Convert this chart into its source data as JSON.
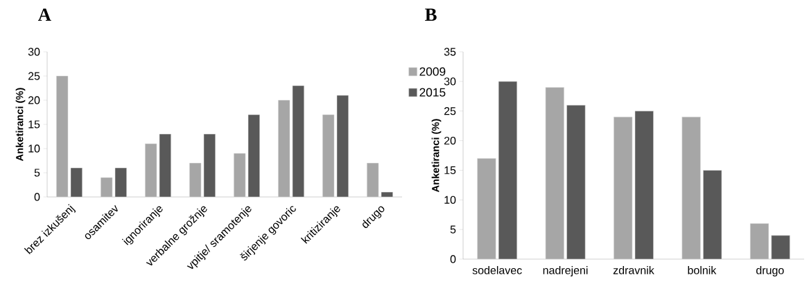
{
  "chart_data": [
    {
      "type": "bar",
      "title": "A",
      "ylabel": "Anketiranci (%)",
      "categories": [
        "brez izkušenj",
        "osamitev",
        "ignoriranje",
        "verbalne grožnje",
        "vpitje/ sramotenje",
        "širjenje govoric",
        "kritiziranje",
        "drugo"
      ],
      "series": [
        {
          "name": "2009",
          "color": "#a6a6a6",
          "values": [
            25,
            4,
            11,
            7,
            9,
            20,
            17,
            7
          ]
        },
        {
          "name": "2015",
          "color": "#595959",
          "values": [
            6,
            6,
            13,
            13,
            17,
            23,
            21,
            1
          ]
        }
      ],
      "ylim": [
        0,
        30
      ],
      "yticks": [
        0,
        5,
        10,
        15,
        20,
        25,
        30
      ],
      "legend": "right"
    },
    {
      "type": "bar",
      "title": "B",
      "ylabel": "Anketiranci (%)",
      "categories": [
        "sodelavec",
        "nadrejeni",
        "zdravnik",
        "bolnik",
        "drugo"
      ],
      "series": [
        {
          "color": "#a6a6a6",
          "values": [
            17,
            29,
            24,
            24,
            6
          ]
        },
        {
          "color": "#595959",
          "values": [
            30,
            26,
            25,
            15,
            4
          ]
        }
      ],
      "ylim": [
        0,
        35
      ],
      "yticks": [
        0,
        5,
        10,
        15,
        20,
        25,
        30,
        35
      ]
    }
  ]
}
